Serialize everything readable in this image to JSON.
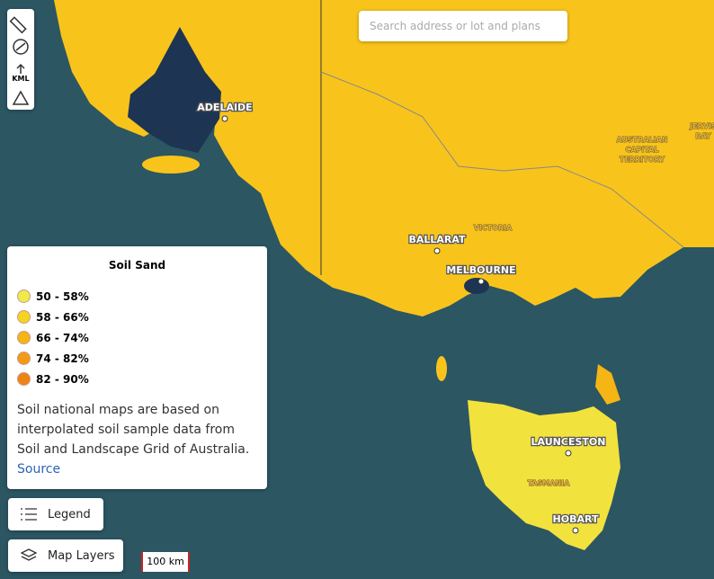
{
  "search": {
    "placeholder": "Search address or lot and plans"
  },
  "toolbar": {
    "kml_label": "KML"
  },
  "legend_panel": {
    "title": "Soil Sand",
    "items": [
      {
        "label": "50 - 58%",
        "color": "#ecea4c"
      },
      {
        "label": "58 - 66%",
        "color": "#f5d41f"
      },
      {
        "label": "66 - 74%",
        "color": "#f4b515"
      },
      {
        "label": "74 - 82%",
        "color": "#f29b12"
      },
      {
        "label": "82 - 90%",
        "color": "#ee8413"
      }
    ],
    "description": "Soil national maps are based on interpolated soil sample data from Soil and Landscape Grid of Australia.",
    "source_link": "Source"
  },
  "buttons": {
    "legend": "Legend",
    "map_layers": "Map Layers"
  },
  "scale_bar": "100 km",
  "map_labels": [
    {
      "lines": [
        "ADELAIDE"
      ]
    },
    {
      "lines": [
        "BALLARAT"
      ]
    },
    {
      "lines": [
        "VICTORIA"
      ]
    },
    {
      "lines": [
        "MELBOURNE"
      ]
    },
    {
      "lines": [
        "AUSTRALIAN",
        "CAPITAL",
        "TERRITORY"
      ]
    },
    {
      "lines": [
        "JERVIS",
        "BAY"
      ]
    },
    {
      "lines": [
        "LAUNCESTON"
      ]
    },
    {
      "lines": [
        "TASMANIA"
      ]
    },
    {
      "lines": [
        "HOBART"
      ]
    }
  ]
}
